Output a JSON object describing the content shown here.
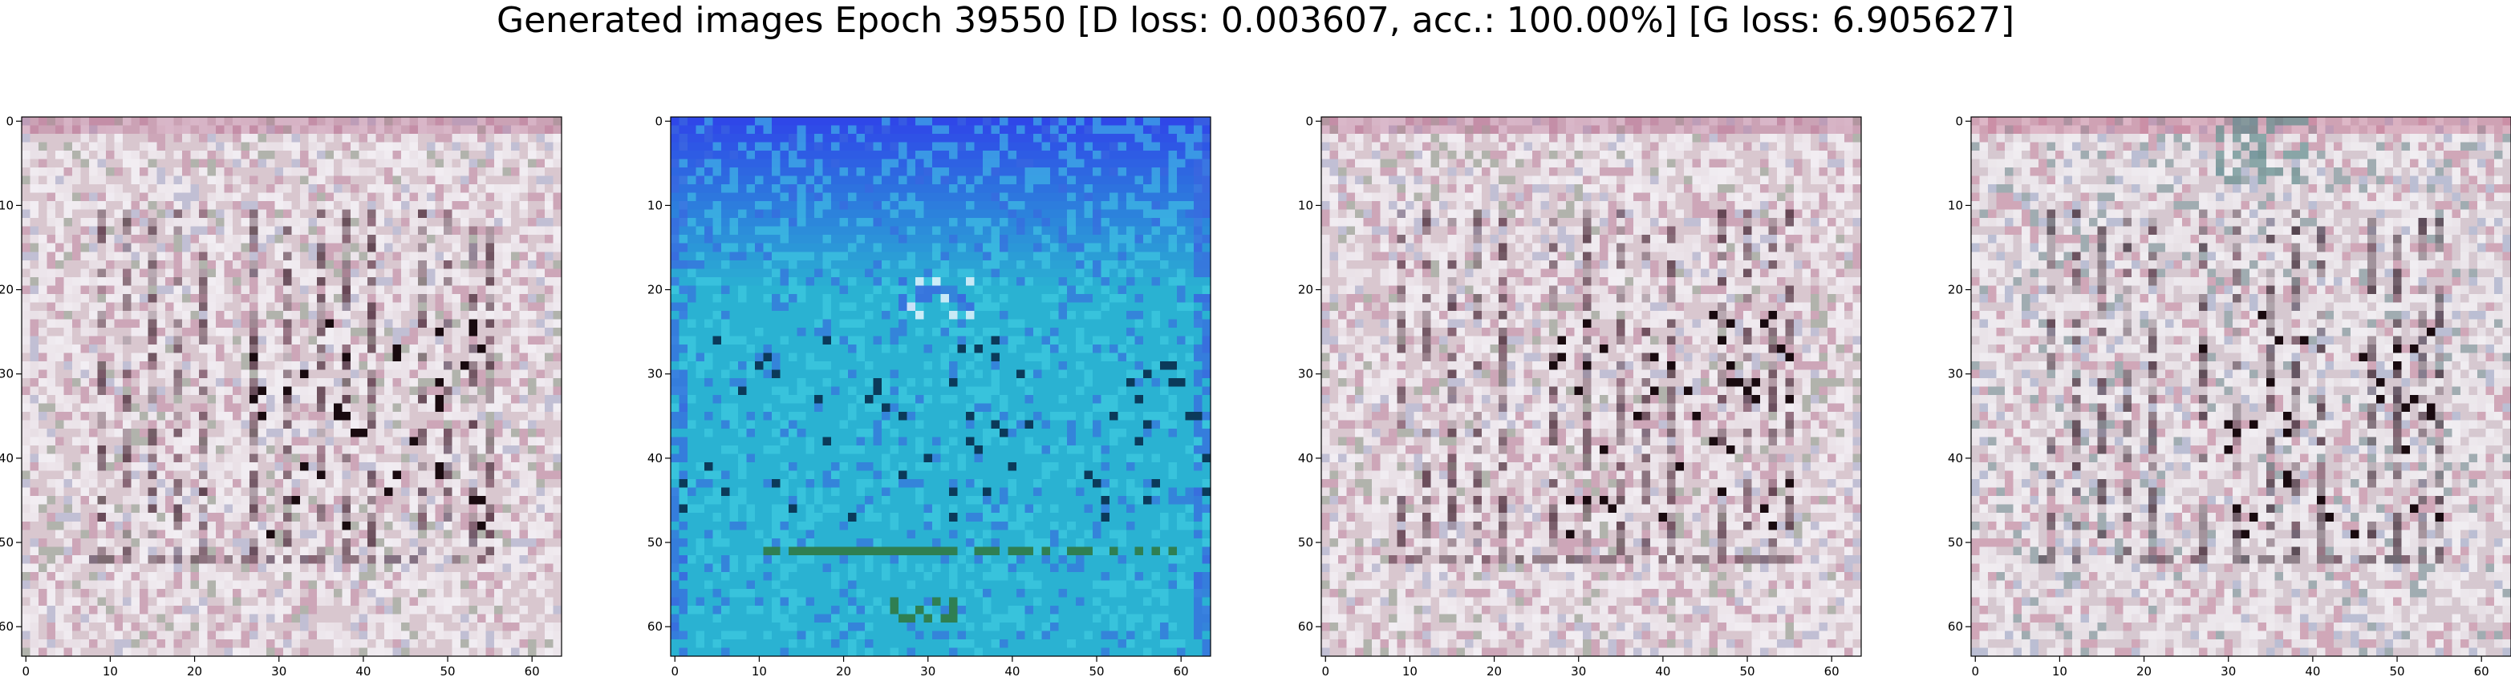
{
  "figure": {
    "suptitle": "Generated images Epoch 39550 [D loss: 0.003607, acc.: 100.00%] [G loss: 6.905627]"
  },
  "chart_data": [
    {
      "type": "heatmap",
      "grid": [
        64,
        64
      ],
      "xlim": [
        -0.5,
        63.5
      ],
      "ylim": [
        63.5,
        -0.5
      ],
      "xticks": [
        0,
        10,
        20,
        30,
        40,
        50,
        60
      ],
      "yticks": [
        0,
        10,
        20,
        30,
        40,
        50,
        60
      ],
      "palette": "pinkish-grey noise with vertical stripes",
      "colors": {
        "base": "#d9c7cf",
        "light": "#f2eef3",
        "dark": "#5a3b49",
        "accent": "#b76a8e",
        "green": "#7f9a82",
        "blue": "#a8b7d8"
      }
    },
    {
      "type": "heatmap",
      "grid": [
        64,
        64
      ],
      "xlim": [
        -0.5,
        63.5
      ],
      "ylim": [
        63.5,
        -0.5
      ],
      "xticks": [
        0,
        10,
        20,
        30,
        40,
        50,
        60
      ],
      "yticks": [
        0,
        10,
        20,
        30,
        40,
        50,
        60
      ],
      "palette": "blue top fading to cyan",
      "colors": {
        "top": "#2f47e8",
        "base": "#2ab2d2",
        "light": "#45d4e6",
        "dark": "#0b3a5a",
        "green": "#2f7f52",
        "blue": "#3a66e0"
      }
    },
    {
      "type": "heatmap",
      "grid": [
        64,
        64
      ],
      "xlim": [
        -0.5,
        63.5
      ],
      "ylim": [
        63.5,
        -0.5
      ],
      "xticks": [
        0,
        10,
        20,
        30,
        40,
        50,
        60
      ],
      "yticks": [
        0,
        10,
        20,
        30,
        40,
        50,
        60
      ],
      "palette": "pinkish-grey noise with vertical stripes",
      "colors": {
        "base": "#d9c7cf",
        "light": "#f2eef3",
        "dark": "#5a3b49",
        "accent": "#b76a8e",
        "green": "#7f9a82",
        "blue": "#a8b7d8"
      }
    },
    {
      "type": "heatmap",
      "grid": [
        64,
        64
      ],
      "xlim": [
        -0.5,
        63.5
      ],
      "ylim": [
        63.5,
        -0.5
      ],
      "xticks": [
        0,
        10,
        20,
        30,
        40,
        50,
        60
      ],
      "yticks": [
        0,
        10,
        20,
        30,
        40,
        50,
        60
      ],
      "palette": "pinkish-grey noise with vertical stripes, teal top",
      "colors": {
        "base": "#d6c8d0",
        "light": "#f1eef2",
        "dark": "#4f3a46",
        "accent": "#c46a8a",
        "green": "#5f8a8a",
        "blue": "#9fb3d6"
      }
    }
  ]
}
